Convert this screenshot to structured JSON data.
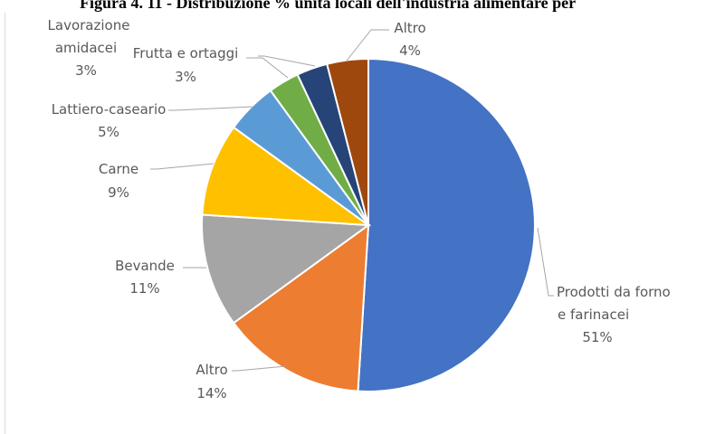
{
  "title": "Figura 4. 11 - Distribuzione % unità locali dell'industria alimentare per",
  "chart_data": {
    "type": "pie",
    "title": "Figura 4. 11 - Distribuzione % unità locali dell'industria alimentare per",
    "unit": "%",
    "start_angle_deg": 0,
    "direction": "clockwise",
    "slices": [
      {
        "label": "Prodotti da forno e farinacei",
        "value": 51,
        "value_label": "51%",
        "color": "#4472C4"
      },
      {
        "label": "Altro",
        "value": 14,
        "value_label": "14%",
        "color": "#ED7D31"
      },
      {
        "label": "Bevande",
        "value": 11,
        "value_label": "11%",
        "color": "#A5A5A5"
      },
      {
        "label": "Carne",
        "value": 9,
        "value_label": "9%",
        "color": "#FFC000"
      },
      {
        "label": "Lattiero-caseario",
        "value": 5,
        "value_label": "5%",
        "color": "#5B9BD5"
      },
      {
        "label": "Frutta e ortaggi",
        "value": 3,
        "value_label": "3%",
        "color": "#70AD47"
      },
      {
        "label": "Lavorazione amidacei",
        "value": 3,
        "value_label": "3%",
        "color": "#264478"
      },
      {
        "label": "Altro",
        "value": 4,
        "value_label": "4%",
        "color": "#9E480E"
      }
    ]
  }
}
